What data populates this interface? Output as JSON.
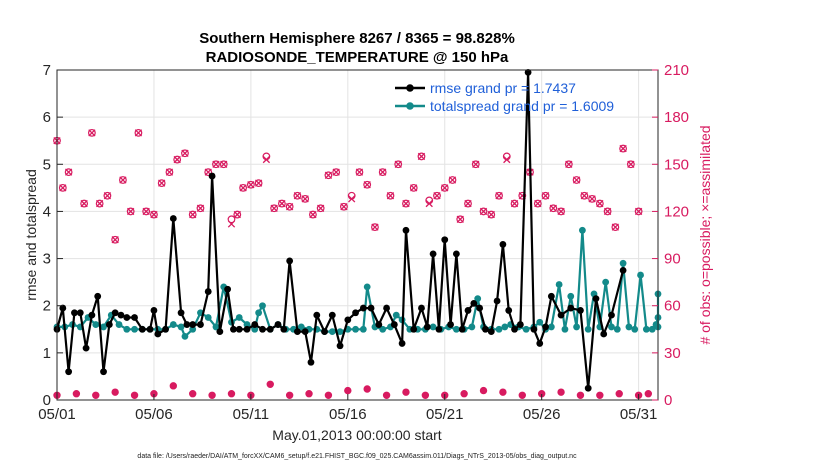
{
  "chart_data": {
    "type": "line",
    "title_line1": "Southern Hemisphere 8267 / 8365 = 98.828%",
    "title_line2": "RADIOSONDE_TEMPERATURE @ 150 hPa",
    "xlabel": "May.01,2013 00:00:00 start",
    "ylabel": "rmse and totalspread",
    "y2label": "# of obs: o=possible; ×=assimilated",
    "footer": "data file: /Users/raeder/DAI/ATM_forcXX/CAM6_setup/f.e21.FHIST_BGC.f09_025.CAM6assim.011/Diags_NTrS_2013-05/obs_diag_output.nc",
    "xlim": [
      1,
      32
    ],
    "ylim": [
      0,
      7
    ],
    "y2lim": [
      0,
      210
    ],
    "xticks": [
      1,
      6,
      11,
      16,
      21,
      26,
      31
    ],
    "xtick_labels": [
      "05/01",
      "05/06",
      "05/11",
      "05/16",
      "05/21",
      "05/26",
      "05/31"
    ],
    "yticks": [
      0,
      1,
      2,
      3,
      4,
      5,
      6,
      7
    ],
    "y2ticks": [
      0,
      30,
      60,
      90,
      120,
      150,
      180,
      210
    ],
    "series": [
      {
        "name": "rmse",
        "legend": "rmse grand pr = 1.7437",
        "color": "#000000",
        "values": [
          1.5,
          1.95,
          0.6,
          1.85,
          1.85,
          1.1,
          1.8,
          2.2,
          0.6,
          1.6,
          1.85,
          1.8,
          1.75,
          1.75,
          1.5,
          1.5,
          1.9,
          1.4,
          1.5,
          3.85,
          1.85,
          1.6,
          1.6,
          1.6,
          2.3,
          4.75,
          1.45,
          2.35,
          1.5,
          1.5,
          1.5,
          1.6,
          1.5,
          1.5,
          1.6,
          1.5,
          2.95,
          1.45,
          1.45,
          0.8,
          1.8,
          1.45,
          1.8,
          1.15,
          1.7,
          1.85,
          1.95,
          1.95,
          1.6,
          1.95,
          1.6,
          1.2,
          3.6,
          1.5,
          1.95,
          1.55,
          3.1,
          1.5,
          3.4,
          1.6,
          3.1,
          1.5,
          1.9,
          2.05,
          1.95,
          1.5,
          1.45,
          2.1,
          3.3,
          1.9,
          1.5,
          1.6,
          6.95,
          1.5,
          1.2,
          1.55,
          2.2,
          1.8,
          1.95,
          1.9,
          0.25,
          2.15,
          1.4,
          1.8,
          2.75
        ],
        "x": [
          1,
          1.3,
          1.6,
          1.9,
          2.2,
          2.5,
          2.8,
          3.1,
          3.4,
          3.7,
          4.0,
          4.3,
          4.6,
          5.0,
          5.4,
          5.8,
          6.0,
          6.2,
          6.6,
          7.0,
          7.4,
          7.7,
          8.0,
          8.4,
          8.8,
          9.0,
          9.4,
          9.8,
          10.1,
          10.4,
          10.8,
          11.2,
          11.6,
          12.0,
          12.4,
          12.7,
          13.0,
          13.4,
          13.8,
          14.1,
          14.4,
          14.8,
          15.2,
          15.6,
          16.0,
          16.4,
          16.8,
          17.2,
          17.6,
          18.0,
          18.4,
          18.8,
          19.0,
          19.4,
          19.8,
          20.1,
          20.4,
          20.7,
          21.0,
          21.3,
          21.6,
          21.9,
          22.2,
          22.5,
          22.8,
          23.1,
          23.4,
          23.7,
          24.0,
          24.3,
          24.6,
          24.9,
          25.3,
          25.6,
          25.9,
          26.2,
          26.5,
          27.0,
          27.5,
          28.0,
          28.4,
          28.8,
          29.2,
          29.6,
          30.2
        ]
      },
      {
        "name": "totalspread",
        "legend": "totalspread grand pr = 1.6009",
        "color": "#138a8a",
        "values": [
          1.55,
          1.55,
          1.6,
          1.55,
          1.75,
          1.6,
          1.55,
          1.8,
          1.6,
          1.5,
          1.5,
          1.5,
          1.5,
          1.5,
          1.5,
          1.6,
          1.55,
          1.35,
          1.5,
          1.85,
          1.75,
          1.55,
          2.4,
          1.65,
          1.75,
          1.6,
          1.5,
          1.85,
          2.0,
          1.5,
          1.6,
          1.5,
          1.5,
          1.55,
          1.5,
          1.5,
          1.45,
          1.45,
          1.45,
          1.5,
          1.5,
          1.5,
          2.4,
          1.55,
          1.5,
          1.55,
          1.8,
          1.7,
          1.5,
          1.5,
          1.5,
          1.55,
          1.5,
          1.55,
          1.5,
          1.5,
          1.55,
          2.15,
          1.55,
          1.5,
          1.5,
          1.55,
          1.6,
          1.55,
          1.5,
          1.55,
          1.65,
          1.5,
          1.55,
          2.45,
          1.5,
          2.2,
          1.55,
          3.6,
          1.5,
          2.25,
          1.55,
          2.5,
          1.55,
          1.5,
          2.9,
          1.55,
          1.5,
          2.65,
          1.5,
          1.5,
          1.6,
          1.75,
          1.55,
          2.25
        ],
        "x": [
          1,
          1.4,
          1.8,
          2.2,
          2.6,
          3.0,
          3.4,
          3.8,
          4.2,
          4.6,
          5.0,
          5.4,
          5.8,
          6.2,
          6.6,
          7.0,
          7.4,
          7.6,
          8.0,
          8.4,
          8.8,
          9.2,
          9.6,
          10.0,
          10.4,
          10.8,
          11.2,
          11.4,
          11.6,
          12.0,
          12.4,
          12.8,
          13.2,
          13.6,
          14.0,
          14.4,
          14.8,
          15.2,
          15.6,
          16.0,
          16.4,
          16.8,
          17.0,
          17.4,
          17.8,
          18.2,
          18.5,
          18.8,
          19.2,
          19.6,
          20.0,
          20.4,
          20.8,
          21.2,
          21.6,
          22.0,
          22.4,
          22.7,
          23.0,
          23.4,
          23.8,
          24.1,
          24.4,
          24.8,
          25.2,
          25.6,
          25.9,
          26.2,
          26.5,
          26.9,
          27.2,
          27.5,
          27.8,
          28.1,
          28.4,
          28.7,
          29.0,
          29.3,
          29.6,
          29.9,
          30.2,
          30.5,
          30.8,
          31.1,
          31.4,
          31.7,
          31.9,
          32.0,
          32.0,
          32.0
        ]
      }
    ],
    "obs_possible": {
      "x": [
        1,
        1.3,
        1.6,
        2.4,
        2.8,
        3.2,
        3.6,
        4.0,
        4.4,
        4.8,
        5.2,
        5.6,
        6.0,
        6.4,
        6.8,
        7.2,
        7.6,
        8.0,
        8.4,
        8.8,
        9.2,
        9.6,
        10.0,
        10.3,
        10.6,
        11.0,
        11.4,
        11.8,
        12.2,
        12.6,
        13.0,
        13.4,
        13.8,
        14.2,
        14.6,
        15.0,
        15.4,
        15.8,
        16.2,
        16.6,
        17.0,
        17.4,
        17.8,
        18.2,
        18.6,
        19.0,
        19.4,
        19.8,
        20.2,
        20.6,
        21.0,
        21.4,
        21.8,
        22.2,
        22.6,
        23.0,
        23.4,
        23.8,
        24.2,
        24.6,
        25.0,
        25.4,
        25.8,
        26.2,
        26.6,
        27.0,
        27.4,
        27.8,
        28.2,
        28.6,
        29.0,
        29.4,
        29.8,
        30.2,
        30.6,
        31.0
      ],
      "values": [
        165,
        135,
        145,
        125,
        170,
        125,
        130,
        102,
        140,
        120,
        170,
        120,
        118,
        138,
        145,
        153,
        157,
        118,
        122,
        145,
        150,
        150,
        115,
        118,
        135,
        137,
        138,
        155,
        122,
        125,
        123,
        130,
        128,
        118,
        122,
        143,
        145,
        123,
        130,
        145,
        137,
        110,
        145,
        130,
        150,
        125,
        135,
        155,
        127,
        130,
        135,
        140,
        115,
        125,
        150,
        120,
        118,
        130,
        155,
        125,
        130,
        145,
        125,
        130,
        122,
        120,
        150,
        140,
        130,
        128,
        125,
        120,
        110,
        160,
        150,
        120
      ]
    },
    "obs_assimilated": {
      "x": [
        1,
        1.3,
        1.6,
        2.4,
        2.8,
        3.2,
        3.6,
        4.0,
        4.4,
        4.8,
        5.2,
        5.6,
        6.0,
        6.4,
        6.8,
        7.2,
        7.6,
        8.0,
        8.4,
        8.8,
        9.2,
        9.6,
        10.0,
        10.3,
        10.6,
        11.0,
        11.4,
        11.8,
        12.2,
        12.6,
        13.0,
        13.4,
        13.8,
        14.2,
        14.6,
        15.0,
        15.4,
        15.8,
        16.2,
        16.6,
        17.0,
        17.4,
        17.8,
        18.2,
        18.6,
        19.0,
        19.4,
        19.8,
        20.2,
        20.6,
        21.0,
        21.4,
        21.8,
        22.2,
        22.6,
        23.0,
        23.4,
        23.8,
        24.2,
        24.6,
        25.0,
        25.4,
        25.8,
        26.2,
        26.6,
        27.0,
        27.4,
        27.8,
        28.2,
        28.6,
        29.0,
        29.4,
        29.8,
        30.2,
        30.6,
        31.0
      ],
      "values": [
        165,
        135,
        145,
        125,
        170,
        125,
        130,
        102,
        140,
        120,
        170,
        120,
        118,
        138,
        145,
        153,
        157,
        118,
        122,
        145,
        150,
        150,
        112,
        118,
        135,
        137,
        138,
        153,
        122,
        125,
        123,
        130,
        128,
        118,
        122,
        143,
        145,
        123,
        128,
        145,
        137,
        110,
        145,
        130,
        150,
        125,
        135,
        155,
        125,
        130,
        135,
        140,
        115,
        125,
        150,
        120,
        118,
        130,
        153,
        125,
        130,
        145,
        125,
        130,
        122,
        120,
        150,
        140,
        130,
        128,
        125,
        120,
        110,
        160,
        150,
        120
      ]
    },
    "obs_low": {
      "x": [
        1,
        2,
        3,
        4,
        5,
        6,
        7,
        8,
        9,
        10,
        11,
        12,
        13,
        14,
        15,
        16,
        17,
        18,
        19,
        20,
        21,
        22,
        23,
        24,
        25,
        26,
        27,
        28,
        29,
        30,
        31,
        31.5
      ],
      "values": [
        3,
        4,
        3,
        5,
        3,
        4,
        9,
        4,
        3,
        4,
        3,
        10,
        3,
        4,
        3,
        6,
        7,
        3,
        5,
        3,
        3,
        4,
        6,
        5,
        3,
        4,
        5,
        3,
        3,
        4,
        3,
        4
      ]
    }
  }
}
